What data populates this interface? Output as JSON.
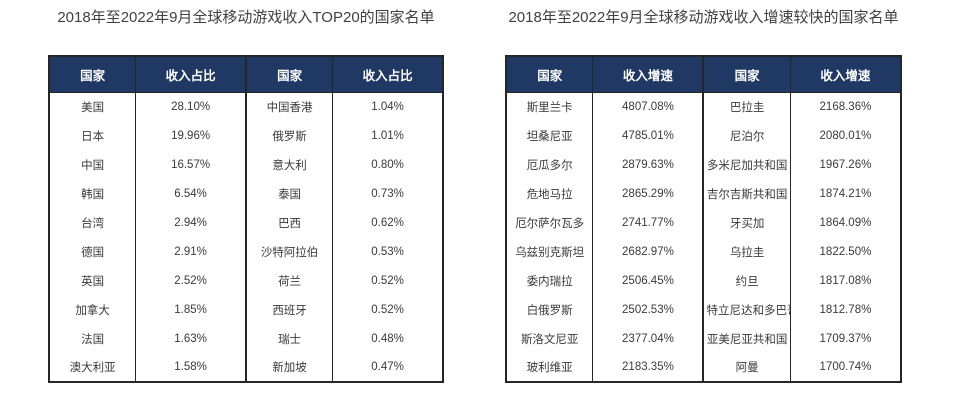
{
  "colors": {
    "header_bg": "#1f3864",
    "header_text": "#ffffff",
    "border": "#262626",
    "body_text": "#3a3a3a",
    "title_text": "#404040",
    "page_bg": "#ffffff"
  },
  "chart_data": [
    {
      "type": "table",
      "title": "2018年至2022年9月全球移动游戏收入TOP20的国家名单",
      "headers": [
        "国家",
        "收入占比",
        "国家",
        "收入占比"
      ],
      "rows": [
        [
          "美国",
          "28.10%",
          "中国香港",
          "1.04%"
        ],
        [
          "日本",
          "19.96%",
          "俄罗斯",
          "1.01%"
        ],
        [
          "中国",
          "16.57%",
          "意大利",
          "0.80%"
        ],
        [
          "韩国",
          "6.54%",
          "泰国",
          "0.73%"
        ],
        [
          "台湾",
          "2.94%",
          "巴西",
          "0.62%"
        ],
        [
          "德国",
          "2.91%",
          "沙特阿拉伯",
          "0.53%"
        ],
        [
          "英国",
          "2.52%",
          "荷兰",
          "0.52%"
        ],
        [
          "加拿大",
          "1.85%",
          "西班牙",
          "0.52%"
        ],
        [
          "法国",
          "1.63%",
          "瑞士",
          "0.48%"
        ],
        [
          "澳大利亚",
          "1.58%",
          "新加坡",
          "0.47%"
        ]
      ]
    },
    {
      "type": "table",
      "title": "2018年至2022年9月全球移动游戏收入增速较快的国家名单",
      "headers": [
        "国家",
        "收入增速",
        "国家",
        "收入增速"
      ],
      "rows": [
        [
          "斯里兰卡",
          "4807.08%",
          "巴拉圭",
          "2168.36%"
        ],
        [
          "坦桑尼亚",
          "4785.01%",
          "尼泊尔",
          "2080.01%"
        ],
        [
          "厄瓜多尔",
          "2879.63%",
          "多米尼加共和国",
          "1967.26%"
        ],
        [
          "危地马拉",
          "2865.29%",
          "吉尔吉斯共和国",
          "1874.21%"
        ],
        [
          "厄尔萨尔瓦多",
          "2741.77%",
          "牙买加",
          "1864.09%"
        ],
        [
          "乌兹别克斯坦",
          "2682.97%",
          "乌拉圭",
          "1822.50%"
        ],
        [
          "委内瑞拉",
          "2506.45%",
          "约旦",
          "1817.08%"
        ],
        [
          "白俄罗斯",
          "2502.53%",
          "特立尼达和多巴哥",
          "1812.78%"
        ],
        [
          "斯洛文尼亚",
          "2377.04%",
          "亚美尼亚共和国",
          "1709.37%"
        ],
        [
          "玻利维亚",
          "2183.35%",
          "阿曼",
          "1700.74%"
        ]
      ]
    }
  ]
}
